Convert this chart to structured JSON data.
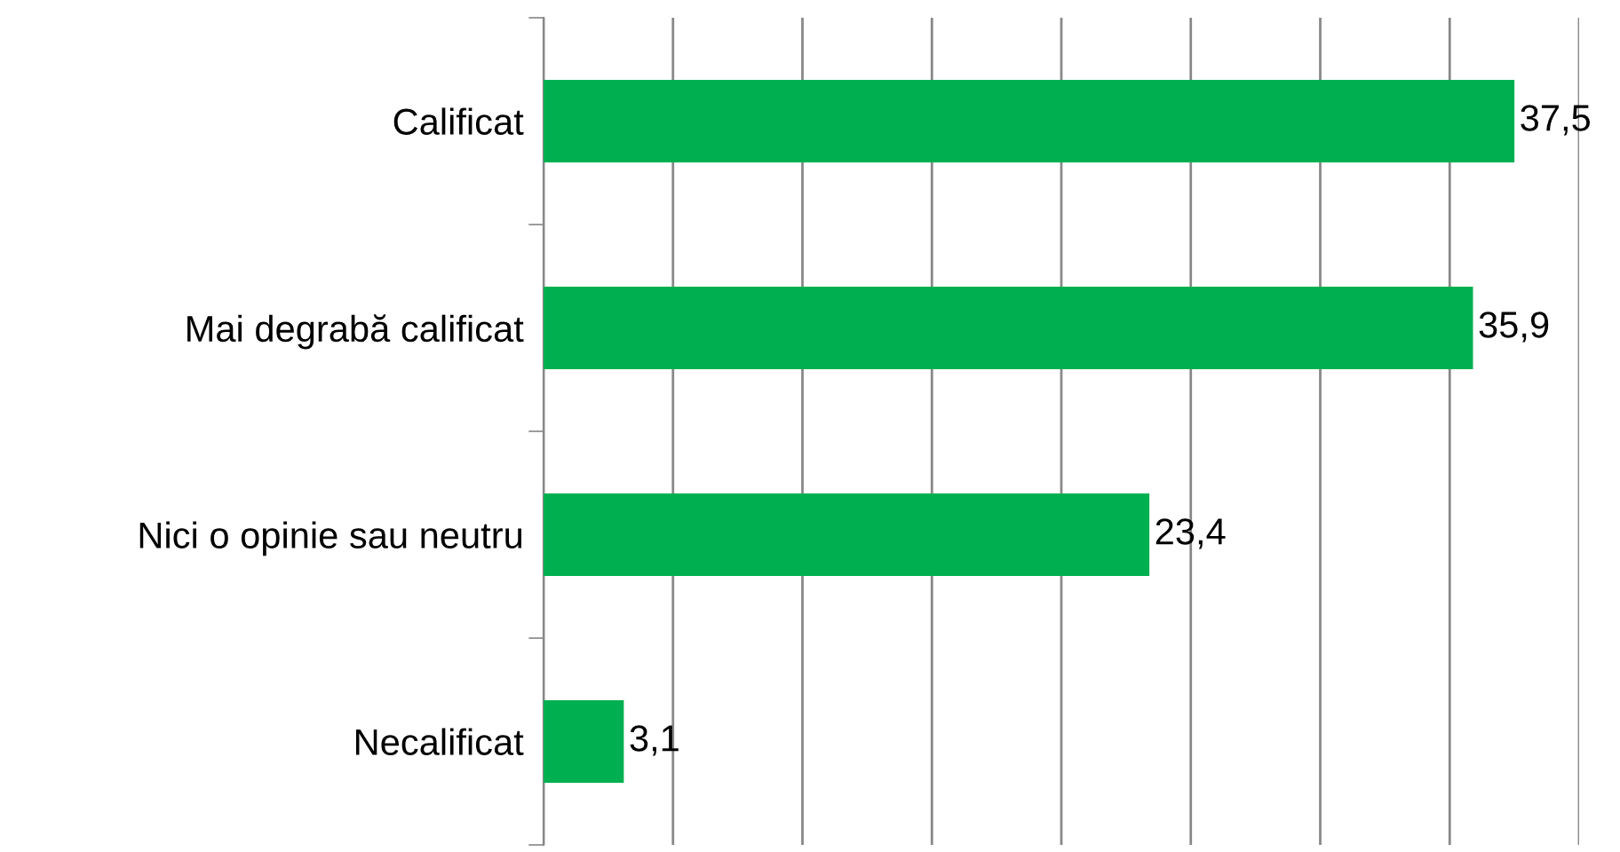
{
  "chart_data": {
    "type": "bar",
    "orientation": "horizontal",
    "categories": [
      "Calificat",
      "Mai degrabă calificat",
      "Nici o opinie sau neutru",
      "Necalificat"
    ],
    "values": [
      37.5,
      35.9,
      23.4,
      3.1
    ],
    "color": "#00b050",
    "value_labels": [
      "37,5",
      "35,9",
      "23,4",
      "3,1"
    ],
    "xlim": [
      0,
      40
    ],
    "xticks": [
      {
        "value": 0,
        "label": null
      },
      {
        "value": 5,
        "label": null
      },
      {
        "value": 10,
        "label": null
      },
      {
        "value": 15,
        "label": null
      },
      {
        "value": 20,
        "label": null
      },
      {
        "value": 25,
        "label": null
      },
      {
        "value": 30,
        "label": null
      },
      {
        "value": 35,
        "label": null
      },
      {
        "value": 40,
        "label": null
      }
    ],
    "tick_labels": "y",
    "grid": "x"
  }
}
